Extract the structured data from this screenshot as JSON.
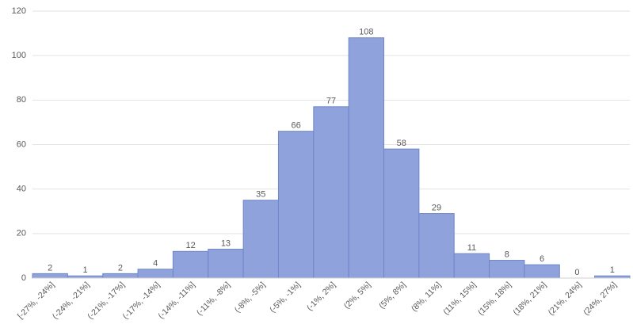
{
  "chart_data": {
    "type": "bar",
    "categories": [
      "[-27%, -24%]",
      "(-24%, -21%]",
      "(-21%, -17%]",
      "(-17%, -14%]",
      "(-14%, -11%]",
      "(-11%, -8%]",
      "(-8%, -5%]",
      "(-5%, -1%]",
      "(-1%, 2%]",
      "(2%, 5%]",
      "(5%, 8%]",
      "(8%, 11%]",
      "(11%, 15%]",
      "(15%, 18%]",
      "(18%, 21%]",
      "(21%, 24%]",
      "(24%, 27%]"
    ],
    "values": [
      2,
      1,
      2,
      4,
      12,
      13,
      35,
      66,
      77,
      108,
      58,
      29,
      11,
      8,
      6,
      0,
      1
    ],
    "color": "#8fa2dc",
    "ylim": [
      0,
      120
    ],
    "yticks": [
      0,
      20,
      40,
      60,
      80,
      100,
      120
    ],
    "grid": true
  }
}
